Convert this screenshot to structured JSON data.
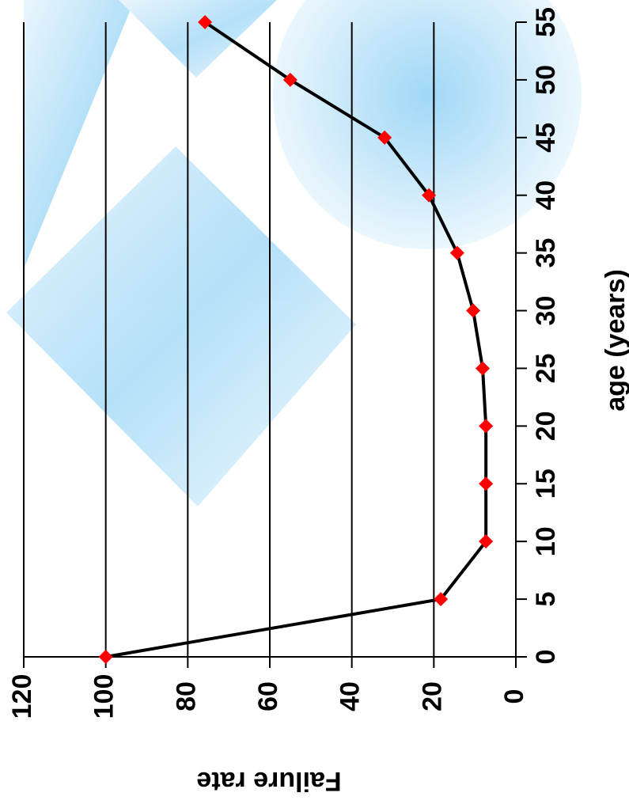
{
  "chart_data": {
    "type": "line",
    "x_label": "age (years)",
    "y_label": "Failure rate",
    "x": [
      0,
      5,
      10,
      15,
      20,
      25,
      30,
      35,
      40,
      45,
      50,
      55
    ],
    "values": [
      100,
      18.3,
      7.3,
      7.3,
      7.3,
      8.1,
      10.4,
      14.3,
      21.2,
      32.0,
      55.0,
      75.8
    ],
    "line_color": "#000000",
    "marker_color": "#ff0000",
    "xlim": [
      0,
      55
    ],
    "xticks": [
      0,
      5,
      10,
      15,
      20,
      25,
      30,
      35,
      40,
      45,
      50,
      55
    ],
    "ylim": [
      0,
      120
    ],
    "yticks": [
      0,
      20,
      40,
      60,
      80,
      100,
      120
    ],
    "grid": true
  }
}
